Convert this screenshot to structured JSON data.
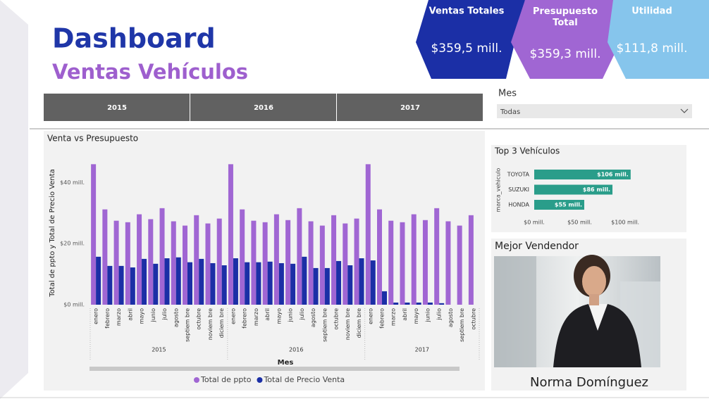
{
  "header": {
    "title": "Dashboard",
    "subtitle": "Ventas Vehículos"
  },
  "kpis": [
    {
      "label": "Ventas Totales",
      "value": "$359,5 mill.",
      "color": "#1b2fa6"
    },
    {
      "label": "Presupuesto Total",
      "value": "$359,3 mill.",
      "color": "#a066d3"
    },
    {
      "label": "Utilidad",
      "value": "$111,8 mill.",
      "color": "#86c5ec"
    }
  ],
  "year_slicer": [
    "2015",
    "2016",
    "2017"
  ],
  "month_slicer": {
    "label": "Mes",
    "value": "Todas"
  },
  "chart_data": [
    {
      "type": "bar",
      "title": "Venta vs Presupuesto",
      "y_label": "Total de ppto y Total de Precio Venta",
      "x_label": "Mes",
      "category_groups": [
        {
          "label": "2015",
          "size": 12
        },
        {
          "label": "2016",
          "size": 12
        },
        {
          "label": "2017",
          "size": 10
        }
      ],
      "categories": [
        "enero",
        "febrero",
        "marzo",
        "abril",
        "mayo",
        "junio",
        "julio",
        "agosto",
        "septiem bre",
        "octubre",
        "noviem bre",
        "diciem bre",
        "enero",
        "febrero",
        "marzo",
        "abril",
        "mayo",
        "junio",
        "julio",
        "agosto",
        "septiem bre",
        "octubre",
        "noviem bre",
        "diciem bre",
        "enero",
        "febrero",
        "marzo",
        "abril",
        "mayo",
        "junio",
        "julio",
        "agosto",
        "septiem bre",
        "octubre"
      ],
      "series": [
        {
          "name": "Total de ppto",
          "color": "#a066d3",
          "values": [
            46,
            31.2,
            27.5,
            27,
            29.6,
            28,
            31.6,
            27.3,
            25.9,
            29.3,
            26.6,
            28.2,
            46,
            31.2,
            27.5,
            27,
            29.6,
            27.7,
            31.6,
            27.3,
            25.9,
            29.3,
            26.6,
            28.2,
            46,
            31.2,
            27.5,
            27,
            29.6,
            27.7,
            31.6,
            27.3,
            25.9,
            29.3
          ]
        },
        {
          "name": "Total de Precio Venta",
          "color": "#1b2fa6",
          "values": [
            15.7,
            12.7,
            12.7,
            12.2,
            15,
            13.4,
            15.2,
            15.5,
            13.9,
            15,
            13.6,
            12.9,
            15.2,
            13.9,
            13.9,
            14.1,
            13.6,
            13.4,
            15.7,
            12,
            12,
            14.3,
            12.9,
            15.2,
            14.5,
            4.4,
            0.7,
            0.7,
            0.7,
            0.7,
            0.5,
            null,
            null,
            null
          ]
        }
      ],
      "ylim": [
        0,
        47
      ],
      "yticks": [
        {
          "value": 0,
          "label": "$0 mill."
        },
        {
          "value": 20,
          "label": "$20 mill."
        },
        {
          "value": 40,
          "label": "$40 mill."
        }
      ],
      "grid": false,
      "legend": "bottom"
    },
    {
      "type": "hbar",
      "title": "Top 3 Vehículos",
      "y_label": "marca_vehiculo",
      "categories": [
        "TOYOTA",
        "SUZUKI",
        "HONDA"
      ],
      "values": [
        106,
        86,
        55
      ],
      "value_labels": [
        "$106 mill.",
        "$86 mill.",
        "$55 mill."
      ],
      "color": "#2a9d8a",
      "xlim": [
        0,
        110
      ],
      "xticks": [
        {
          "value": 0,
          "label": "$0 mill."
        },
        {
          "value": 50,
          "label": "$50 mill."
        },
        {
          "value": 100,
          "label": "$100 mill."
        }
      ]
    }
  ],
  "best_seller": {
    "title": "Mejor Vendendor",
    "name": "Norma Domínguez"
  }
}
